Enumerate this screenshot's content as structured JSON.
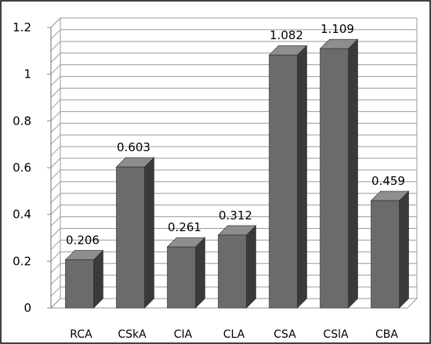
{
  "chart_data": {
    "type": "bar",
    "categories": [
      "RCA",
      "CSkA",
      "CIA",
      "CLA",
      "CSA",
      "CSlA",
      "CBA"
    ],
    "values": [
      0.206,
      0.603,
      0.261,
      0.312,
      1.082,
      1.109,
      0.459
    ],
    "data_labels": [
      "0.206",
      "0.603",
      "0.261",
      "0.312",
      "1.082",
      "1.109",
      "0.459"
    ],
    "title": "",
    "xlabel": "",
    "ylabel": "",
    "ylim": [
      0,
      1.2
    ],
    "yticks": [
      "0",
      "0.2",
      "0.4",
      "0.6",
      "0.8",
      "1",
      "1.2"
    ],
    "grid": true,
    "legend": "none",
    "style": "3d-column",
    "colors": {
      "bar_front": "#6b6b6b",
      "bar_side": "#3a3a3a",
      "bar_top": "#8e8e8e",
      "gridline": "#9a9a9a",
      "wall": "#ffffff",
      "border": "#000000"
    }
  }
}
